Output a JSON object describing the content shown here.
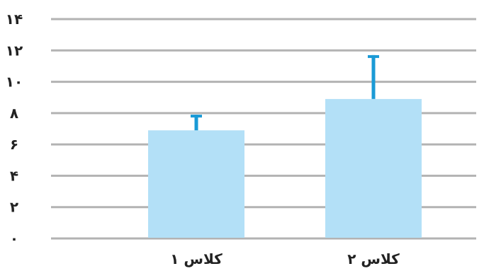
{
  "chart_data": {
    "type": "bar",
    "title": "",
    "xlabel": "",
    "ylabel": "",
    "categories": [
      "کلاس ۱",
      "کلاس ۲"
    ],
    "values": [
      6.9,
      8.9
    ],
    "error_upper": [
      7.9,
      11.7
    ],
    "ylim": [
      0,
      14
    ],
    "yticks": [
      0,
      2,
      4,
      6,
      8,
      10,
      12,
      14
    ],
    "ytick_labels": [
      "۰",
      "۲",
      "۴",
      "۶",
      "۸",
      "۱۰",
      "۱۲",
      "۱۴"
    ],
    "grid": true,
    "legend": "none",
    "colors": {
      "bar": "#b3e0f7",
      "error_bar": "#1a9ad6",
      "grid": "#b3b3b3",
      "text": "#222222"
    }
  }
}
